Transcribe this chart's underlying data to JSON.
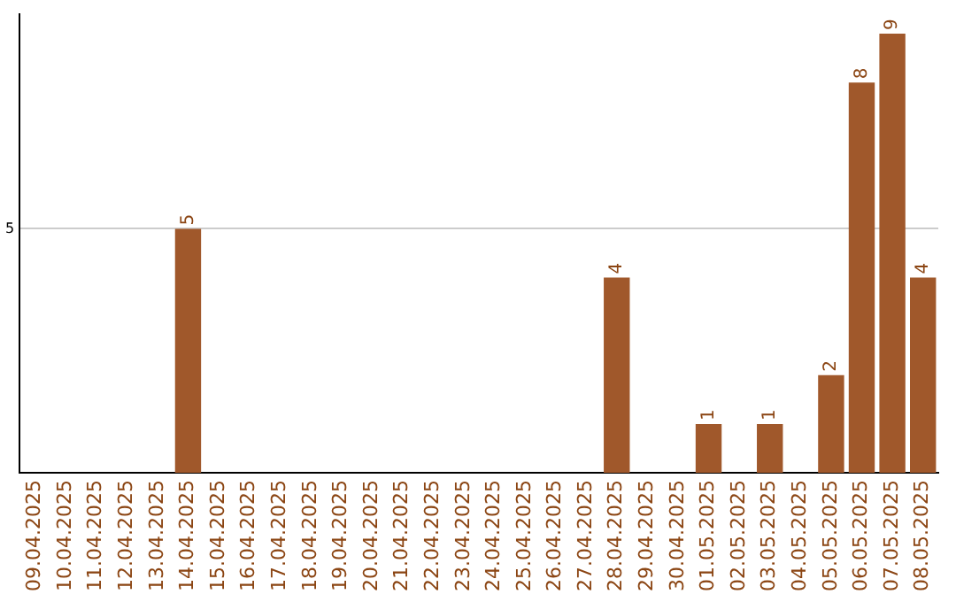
{
  "chart_data": {
    "type": "bar",
    "categories": [
      "09.04.2025",
      "10.04.2025",
      "11.04.2025",
      "12.04.2025",
      "13.04.2025",
      "14.04.2025",
      "15.04.2025",
      "16.04.2025",
      "17.04.2025",
      "18.04.2025",
      "19.04.2025",
      "20.04.2025",
      "21.04.2025",
      "22.04.2025",
      "23.04.2025",
      "24.04.2025",
      "25.04.2025",
      "26.04.2025",
      "27.04.2025",
      "28.04.2025",
      "29.04.2025",
      "30.04.2025",
      "01.05.2025",
      "02.05.2025",
      "03.05.2025",
      "04.05.2025",
      "05.05.2025",
      "06.05.2025",
      "07.05.2025",
      "08.05.2025"
    ],
    "values": [
      0,
      0,
      0,
      0,
      0,
      5,
      0,
      0,
      0,
      0,
      0,
      0,
      0,
      0,
      0,
      0,
      0,
      0,
      0,
      4,
      0,
      0,
      1,
      0,
      1,
      0,
      2,
      8,
      9,
      4
    ],
    "value_labels": [
      null,
      null,
      null,
      null,
      null,
      "5",
      null,
      null,
      null,
      null,
      null,
      null,
      null,
      null,
      null,
      null,
      null,
      null,
      null,
      "4",
      null,
      null,
      "1",
      null,
      "1",
      null,
      "2",
      "8",
      "9",
      "4"
    ],
    "color": "#a0582b",
    "ylim": [
      0,
      9.4
    ],
    "yticks": [
      5
    ],
    "grid": "y",
    "legend": false
  }
}
